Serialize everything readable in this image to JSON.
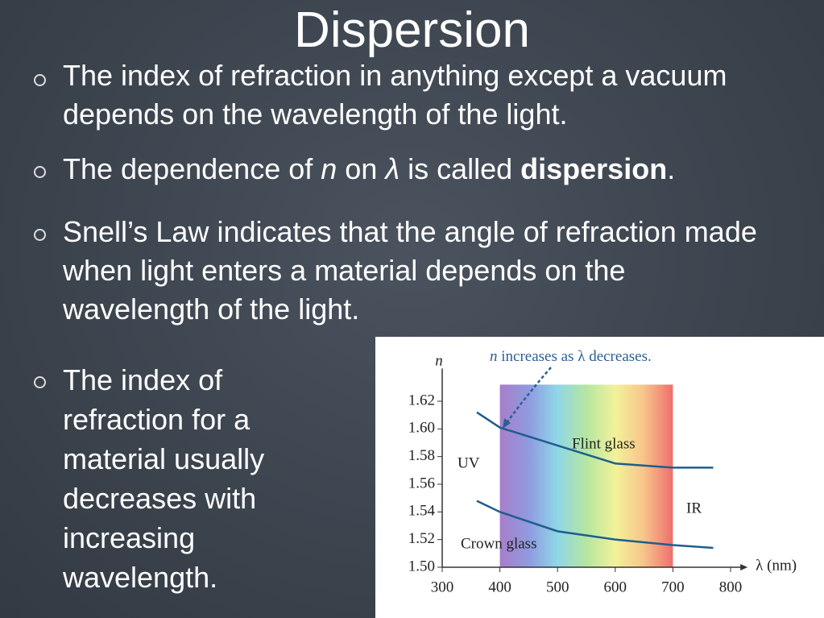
{
  "title": "Dispersion",
  "bullets": [
    {
      "text": "The index of refraction in anything except a vacuum depends on the wavelength of the light."
    },
    {
      "parts": [
        "The dependence of ",
        "n",
        " on ",
        "λ",
        " is called ",
        "dispersion",
        "."
      ]
    },
    {
      "text": "Snell’s Law indicates that the angle of refraction made when light enters a material depends on the wavelength of the light."
    },
    {
      "text": "The index of refraction for a material usually decreases with increasing wavelength."
    }
  ],
  "chart_data": {
    "type": "line",
    "annotation": [
      "n",
      " increases as ",
      "λ",
      " decreases."
    ],
    "x_label": "λ (nm)",
    "y_label": "n",
    "labels": [
      "Flint glass",
      "Crown glass",
      "UV",
      "IR"
    ],
    "band": [
      400,
      700
    ],
    "x": [
      360,
      400,
      500,
      600,
      700,
      770
    ],
    "series": [
      {
        "name": "Flint glass",
        "color": "#1f5d8e",
        "values": [
          1.612,
          1.601,
          1.588,
          1.575,
          1.572,
          1.572
        ]
      },
      {
        "name": "Crown glass",
        "color": "#1f5d8e",
        "values": [
          1.548,
          1.54,
          1.526,
          1.52,
          1.516,
          1.514
        ]
      }
    ],
    "xlim": [
      300,
      810
    ],
    "ylim": [
      1.5,
      1.632
    ],
    "xticks": [
      300,
      400,
      500,
      600,
      700,
      800
    ],
    "yticks": [
      {
        "value": 1.5,
        "label": "1.50"
      },
      1.52,
      1.54,
      1.56,
      1.58,
      {
        "value": 1.6,
        "label": "1.60"
      },
      1.62
    ]
  }
}
